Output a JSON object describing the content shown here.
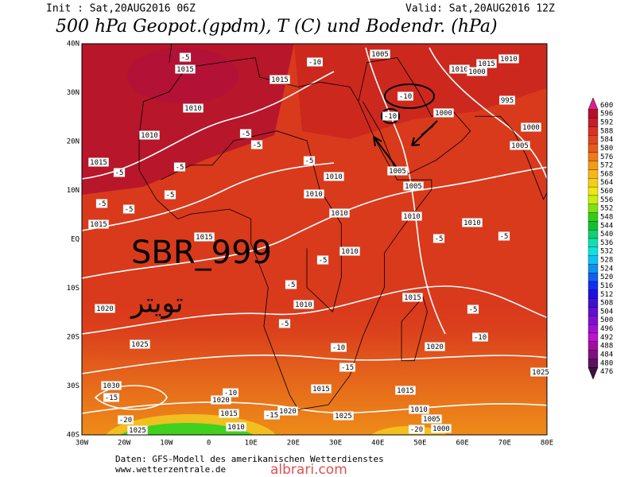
{
  "header": {
    "init": "Init : Sat,20AUG2016 06Z",
    "valid": "Valid: Sat,20AUG2016 12Z",
    "title": "500 hPa Geopot.(gpdm), T (C) und Bodendr. (hPa)"
  },
  "map": {
    "lat_labels": [
      "40N",
      "30N",
      "20N",
      "10N",
      "EQ",
      "10S",
      "20S",
      "30S",
      "40S"
    ],
    "lon_labels": [
      "30W",
      "20W",
      "10W",
      "0",
      "10E",
      "20E",
      "30E",
      "40E",
      "50E",
      "60E",
      "70E",
      "80E"
    ],
    "pressure_labels": [
      "1015",
      "1015",
      "1010",
      "1010",
      "1015",
      "1015",
      "1015",
      "1010",
      "1010",
      "1010",
      "1010",
      "1005",
      "1005",
      "1005",
      "1010",
      "1000",
      "1010",
      "1015",
      "1010",
      "1000",
      "995",
      "1000",
      "1005",
      "1010",
      "1015",
      "1020",
      "1025",
      "1020",
      "1025",
      "1030",
      "1020",
      "1015",
      "1015",
      "1020",
      "1025",
      "1015",
      "1010",
      "1025",
      "1010",
      "1005",
      "1000",
      "1010"
    ],
    "temperature_labels": [
      "-10",
      "-10",
      "-10",
      "-5",
      "-5",
      "-5",
      "-5",
      "-5",
      "-5",
      "-5",
      "-5",
      "-5",
      "-5",
      "-5",
      "-5",
      "-5",
      "-10",
      "-10",
      "-15",
      "-15",
      "-20",
      "-20",
      "-10",
      "-15",
      "-5",
      "-5"
    ]
  },
  "overlay": {
    "watermark": "SBR_999",
    "arabic": "تويتر",
    "site": "albrari.com"
  },
  "colorbar": {
    "labels": [
      600,
      596,
      592,
      588,
      584,
      580,
      576,
      572,
      568,
      564,
      560,
      556,
      552,
      548,
      544,
      540,
      536,
      532,
      528,
      524,
      520,
      516,
      512,
      508,
      504,
      500,
      496,
      492,
      488,
      484,
      480,
      476
    ],
    "colors": [
      "#e0208a",
      "#b5102a",
      "#c81e28",
      "#d83222",
      "#e0461e",
      "#e85a1a",
      "#ef7818",
      "#f59a16",
      "#f7b816",
      "#f5d012",
      "#eee810",
      "#c8ee10",
      "#80e010",
      "#30d010",
      "#10c030",
      "#10d070",
      "#10e0b0",
      "#10e0e0",
      "#10c0f0",
      "#1090f0",
      "#1060f0",
      "#1030f0",
      "#2010e0",
      "#4010d0",
      "#6010d0",
      "#8010d0",
      "#a010d0",
      "#c010d0",
      "#a010a0",
      "#801080",
      "#601060",
      "#401040"
    ]
  },
  "footer": {
    "source": "Daten: GFS-Modell des amerikanischen Wetterdienstes",
    "url": "www.wetterzentrale.de"
  }
}
